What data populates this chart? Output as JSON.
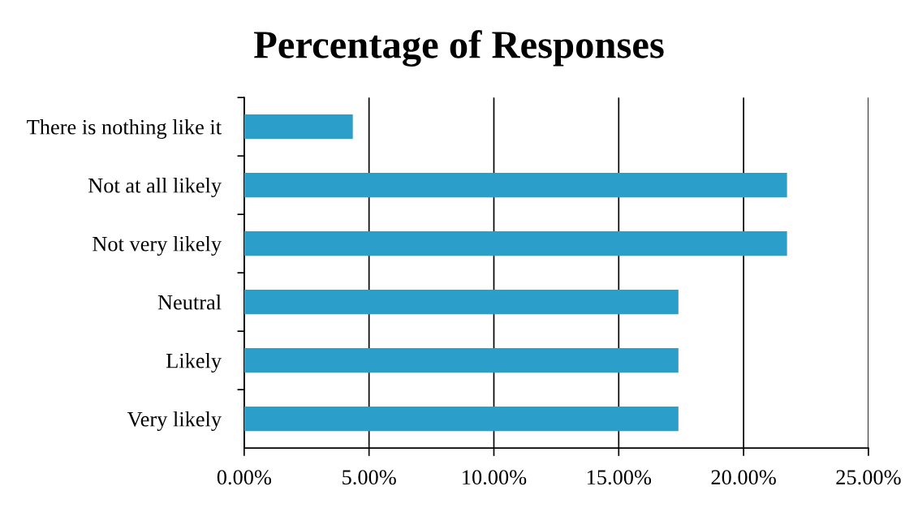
{
  "chart_data": {
    "type": "bar",
    "orientation": "horizontal",
    "title": "Percentage of Responses",
    "categories": [
      "There is nothing like it",
      "Not at all likely",
      "Not very likely",
      "Neutral",
      "Likely",
      "Very likely"
    ],
    "values": [
      4.35,
      21.74,
      21.74,
      17.39,
      17.39,
      17.39
    ],
    "color": "#2b9fc9",
    "xlim": [
      0,
      25
    ],
    "xticks": [
      {
        "value": 0,
        "label": "0.00%"
      },
      {
        "value": 5,
        "label": "5.00%"
      },
      {
        "value": 10,
        "label": "10.00%"
      },
      {
        "value": 15,
        "label": "15.00%"
      },
      {
        "value": 20,
        "label": "20.00%"
      },
      {
        "value": 25,
        "label": "25.00%"
      }
    ],
    "grid": "x",
    "legend": false
  }
}
